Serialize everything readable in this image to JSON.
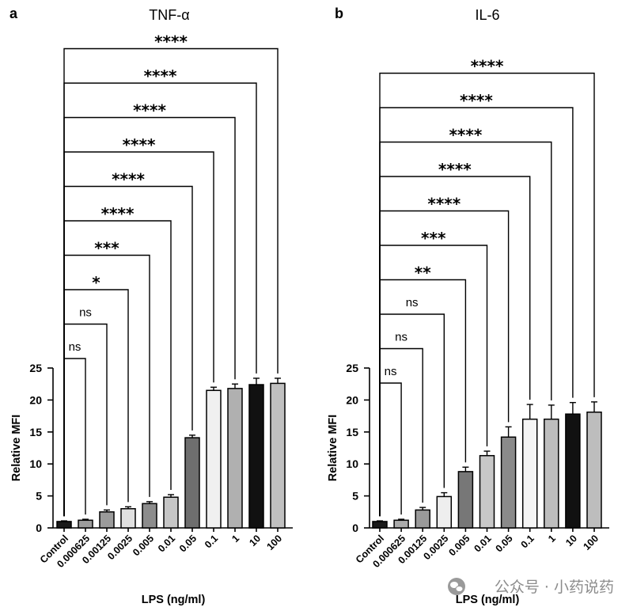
{
  "chart_data": [
    {
      "type": "bar",
      "panel_label": "a",
      "title": "TNF-α",
      "xlabel": "LPS (ng/ml)",
      "ylabel": "Relative MFI",
      "ylim": [
        0,
        25
      ],
      "yticks": [
        0,
        5,
        10,
        15,
        20,
        25
      ],
      "grid": false,
      "legend": "none",
      "categories": [
        "Control",
        "0.000625",
        "0.00125",
        "0.0025",
        "0.005",
        "0.01",
        "0.05",
        "0.1",
        "1",
        "10",
        "100"
      ],
      "values": [
        1.0,
        1.2,
        2.5,
        3.0,
        3.8,
        4.8,
        14.1,
        21.5,
        21.8,
        22.4,
        22.6
      ],
      "errors": [
        0.1,
        0.15,
        0.3,
        0.3,
        0.3,
        0.4,
        0.4,
        0.5,
        0.7,
        1.0,
        0.8
      ],
      "bar_colors": [
        "#1a1a1a",
        "#9c9c9c",
        "#9b9b9b",
        "#e0e0e0",
        "#8c8c8c",
        "#c6c6c6",
        "#6e6e6e",
        "#f0f0f0",
        "#b0b0b0",
        "#111111",
        "#c0c0c0"
      ],
      "comparisons": [
        {
          "from": 0,
          "to": 1,
          "label": "ns"
        },
        {
          "from": 0,
          "to": 2,
          "label": "ns"
        },
        {
          "from": 0,
          "to": 3,
          "label": "*"
        },
        {
          "from": 0,
          "to": 4,
          "label": "***"
        },
        {
          "from": 0,
          "to": 5,
          "label": "****"
        },
        {
          "from": 0,
          "to": 6,
          "label": "****"
        },
        {
          "from": 0,
          "to": 7,
          "label": "****"
        },
        {
          "from": 0,
          "to": 8,
          "label": "****"
        },
        {
          "from": 0,
          "to": 9,
          "label": "****"
        },
        {
          "from": 0,
          "to": 10,
          "label": "****"
        }
      ]
    },
    {
      "type": "bar",
      "panel_label": "b",
      "title": "IL-6",
      "xlabel": "LPS (ng/ml)",
      "ylabel": "Relative MFI",
      "ylim": [
        0,
        25
      ],
      "yticks": [
        0,
        5,
        10,
        15,
        20,
        25
      ],
      "grid": false,
      "legend": "none",
      "categories": [
        "Control",
        "0.000625",
        "0.00125",
        "0.0025",
        "0.005",
        "0.01",
        "0.05",
        "0.1",
        "1",
        "10",
        "100"
      ],
      "values": [
        1.0,
        1.2,
        2.8,
        4.9,
        8.8,
        11.3,
        14.2,
        17.0,
        17.0,
        17.8,
        18.1
      ],
      "errors": [
        0.1,
        0.15,
        0.4,
        0.6,
        0.7,
        0.7,
        1.6,
        2.3,
        2.2,
        1.8,
        1.6
      ],
      "bar_colors": [
        "#1a1a1a",
        "#aaaaaa",
        "#9a9a9a",
        "#eeeeee",
        "#777777",
        "#c8c8c8",
        "#8a8a8a",
        "#f5f5f5",
        "#bdbdbd",
        "#111111",
        "#bdbdbd"
      ],
      "comparisons": [
        {
          "from": 0,
          "to": 1,
          "label": "ns"
        },
        {
          "from": 0,
          "to": 2,
          "label": "ns"
        },
        {
          "from": 0,
          "to": 3,
          "label": "ns"
        },
        {
          "from": 0,
          "to": 4,
          "label": "**"
        },
        {
          "from": 0,
          "to": 5,
          "label": "***"
        },
        {
          "from": 0,
          "to": 6,
          "label": "****"
        },
        {
          "from": 0,
          "to": 7,
          "label": "****"
        },
        {
          "from": 0,
          "to": 8,
          "label": "****"
        },
        {
          "from": 0,
          "to": 9,
          "label": "****"
        },
        {
          "from": 0,
          "to": 10,
          "label": "****"
        }
      ]
    }
  ],
  "watermark": {
    "text": "公众号 · 小药说药",
    "icon": "wechat-logo-icon",
    "color": "#8c8c8c"
  }
}
